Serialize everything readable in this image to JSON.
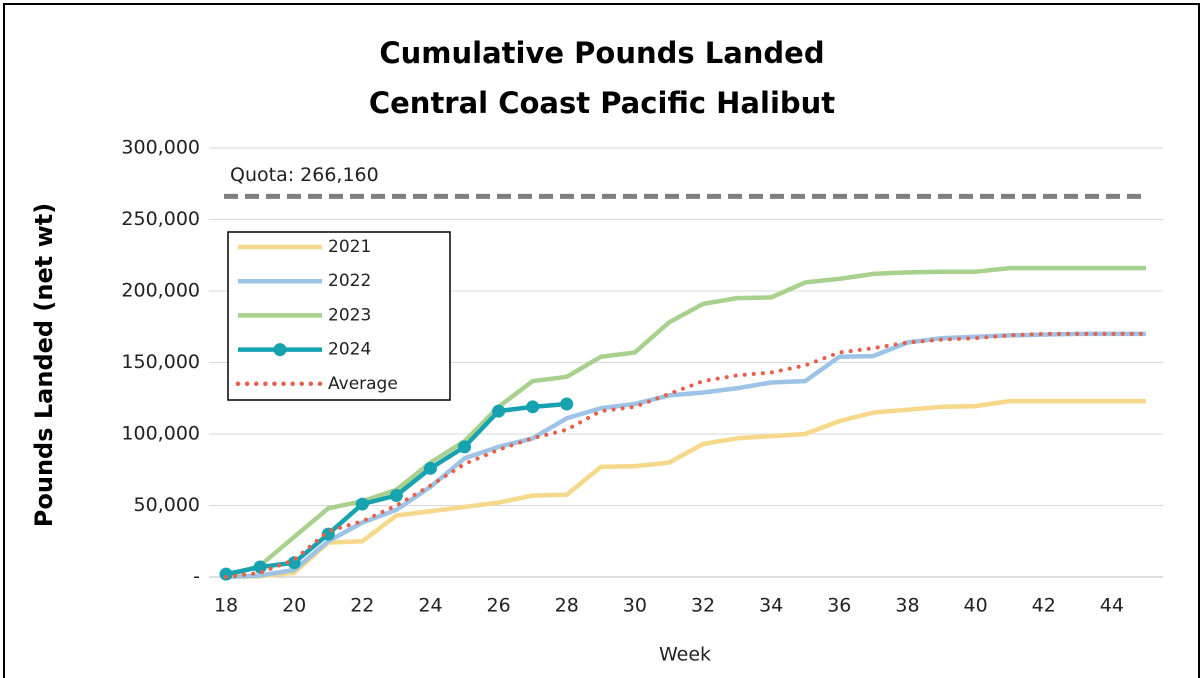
{
  "chart_data": {
    "type": "line",
    "title": "Cumulative Pounds Landed",
    "subtitle": "Central Coast Pacific Halibut",
    "x_label": "Week",
    "y_label": "Pounds Landed (net wt)",
    "x": [
      18,
      19,
      20,
      21,
      22,
      23,
      24,
      25,
      26,
      27,
      28,
      29,
      30,
      31,
      32,
      33,
      34,
      35,
      36,
      37,
      38,
      39,
      40,
      41,
      42,
      43,
      44,
      45
    ],
    "xlim": [
      17.5,
      45.5
    ],
    "xticks": [
      18,
      20,
      22,
      24,
      26,
      28,
      30,
      32,
      34,
      36,
      38,
      40,
      42,
      44
    ],
    "ylim": [
      0,
      300000
    ],
    "yticks": [
      {
        "value": 0,
        "label": "-"
      },
      {
        "value": 50000,
        "label": "50,000"
      },
      {
        "value": 100000,
        "label": "100,000"
      },
      {
        "value": 150000,
        "label": "150,000"
      },
      {
        "value": 200000,
        "label": "200,000"
      },
      {
        "value": 250000,
        "label": "250,000"
      },
      {
        "value": 300000,
        "label": "300,000"
      }
    ],
    "grid": true,
    "legend": "upper left",
    "quota": {
      "value": 266160,
      "label": "Quota: 266,160",
      "color": "#7f7f7f"
    },
    "series": [
      {
        "name": "2021",
        "color": "#f6d88a",
        "values": [
          0,
          500,
          3000,
          24000,
          25000,
          43000,
          46000,
          49000,
          52000,
          57000,
          57500,
          77000,
          77500,
          80000,
          93000,
          97000,
          98500,
          100000,
          109000,
          115000,
          117000,
          119000,
          119500,
          123000,
          123000,
          123000,
          123000,
          123000
        ]
      },
      {
        "name": "2022",
        "color": "#9dc3e6",
        "values": [
          0,
          1000,
          5000,
          25000,
          38000,
          47000,
          63000,
          83000,
          91000,
          97000,
          111000,
          118000,
          121000,
          127000,
          129000,
          132000,
          136000,
          137000,
          154000,
          154500,
          164000,
          167000,
          168000,
          169000,
          169500,
          170000,
          170000,
          170000
        ]
      },
      {
        "name": "2023",
        "color": "#a9d18e",
        "values": [
          0,
          8000,
          28000,
          48000,
          53000,
          61000,
          80000,
          95000,
          119000,
          137000,
          140000,
          154000,
          157000,
          178000,
          191000,
          195000,
          195500,
          206000,
          208500,
          212000,
          213000,
          213500,
          213500,
          216000,
          216000,
          216000,
          216000,
          216000
        ]
      },
      {
        "name": "2024",
        "color": "#17a2b0",
        "markers": true,
        "values": [
          2000,
          7000,
          10000,
          30000,
          51000,
          57000,
          76000,
          91000,
          116000,
          119000,
          121000,
          null,
          null,
          null,
          null,
          null,
          null,
          null,
          null,
          null,
          null,
          null,
          null,
          null,
          null,
          null,
          null,
          null
        ]
      },
      {
        "name": "Average",
        "color": "#e8604c",
        "dotted": true,
        "values": [
          0,
          3000,
          12000,
          32000,
          39000,
          50000,
          64000,
          79000,
          89000,
          97000,
          103000,
          116000,
          119000,
          128000,
          137000,
          141000,
          143000,
          148000,
          157000,
          160000,
          164000,
          166000,
          167000,
          169000,
          170000,
          170000,
          170000,
          170000
        ]
      }
    ]
  }
}
